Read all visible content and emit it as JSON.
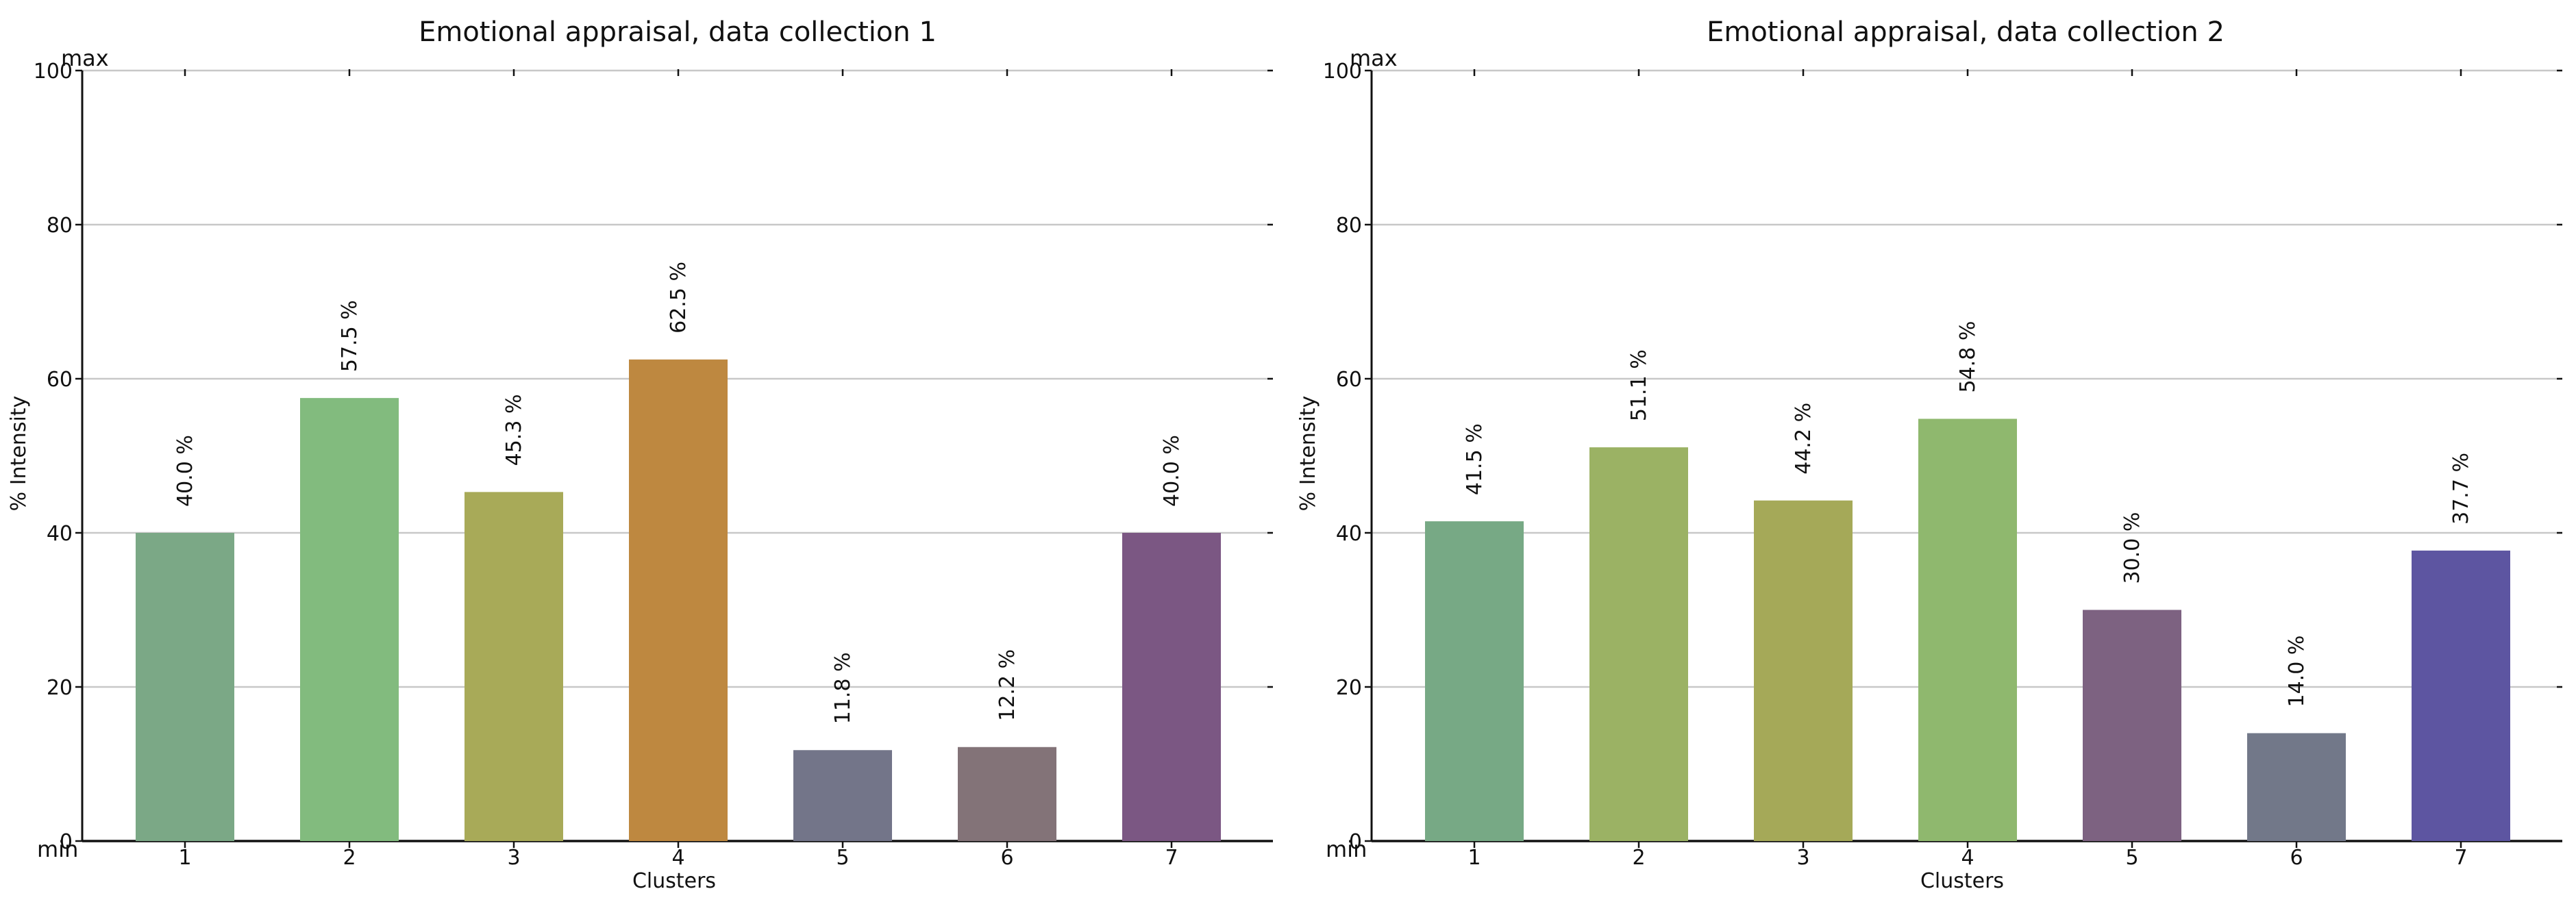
{
  "chart_data": [
    {
      "type": "bar",
      "title": "Emotional appraisal, data collection 1",
      "xlabel": "Clusters",
      "ylabel": "% Intensity",
      "categories": [
        "1",
        "2",
        "3",
        "4",
        "5",
        "6",
        "7"
      ],
      "values": [
        40.0,
        57.5,
        45.3,
        62.5,
        11.8,
        12.2,
        40.0
      ],
      "value_labels": [
        "40.0 %",
        "57.5 %",
        "45.3 %",
        "62.5 %",
        "11.8 %",
        "12.2 %",
        "40.0 %"
      ],
      "colors": [
        "#7ba886",
        "#82bb7e",
        "#a8aa58",
        "#be8840",
        "#737589",
        "#837378",
        "#7b5783"
      ],
      "ylim": [
        0,
        100
      ],
      "yticks": [
        0,
        20,
        40,
        60,
        80,
        100
      ],
      "ymin_label": "min",
      "ymax_label": "max",
      "grid": true
    },
    {
      "type": "bar",
      "title": "Emotional appraisal, data collection 2",
      "xlabel": "Clusters",
      "ylabel": "% Intensity",
      "categories": [
        "1",
        "2",
        "3",
        "4",
        "5",
        "6",
        "7"
      ],
      "values": [
        41.5,
        51.1,
        44.2,
        54.8,
        30.0,
        14.0,
        37.7
      ],
      "value_labels": [
        "41.5 %",
        "51.1 %",
        "44.2 %",
        "54.8 %",
        "30.0 %",
        "14.0 %",
        "37.7 %"
      ],
      "colors": [
        "#77a985",
        "#9bb264",
        "#a5a958",
        "#8fb86e",
        "#7d6281",
        "#727889",
        "#5d55a1"
      ],
      "ylim": [
        0,
        100
      ],
      "yticks": [
        0,
        20,
        40,
        60,
        80,
        100
      ],
      "ymin_label": "min",
      "ymax_label": "max",
      "grid": true
    }
  ]
}
